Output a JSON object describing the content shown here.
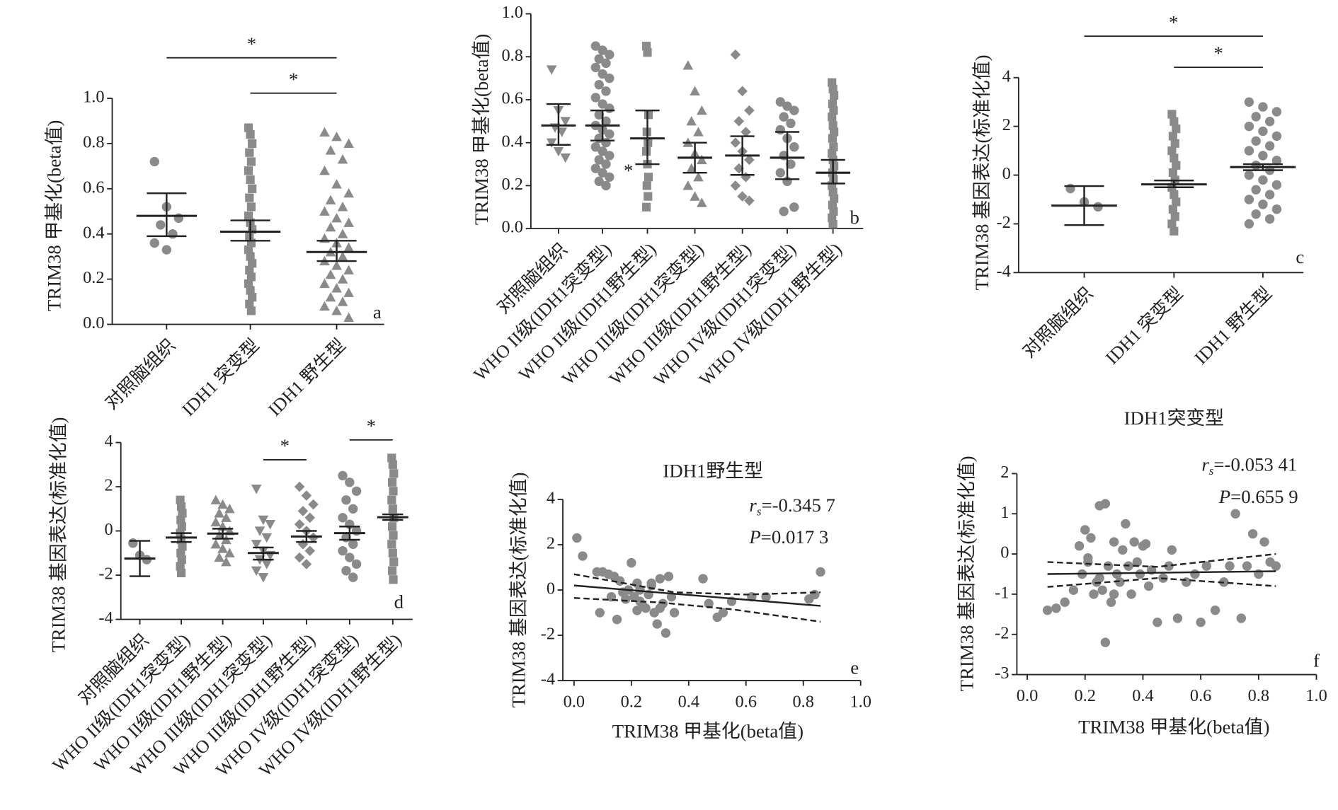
{
  "chart_data": [
    {
      "type": "strip",
      "label": "a",
      "ylabel": "TRIM38 甲基化(beta值)",
      "color": "#8a8a8a",
      "categories": [
        "对照脑组织",
        "IDH1 突变型",
        "IDH1 野生型"
      ],
      "markers": [
        "circle",
        "square",
        "triangle"
      ],
      "ylim": [
        0,
        1
      ],
      "yticks": [
        {
          "value": 0,
          "label": "0.0"
        },
        0.2,
        0.4,
        0.6,
        0.8,
        {
          "value": 1,
          "label": "1.0"
        }
      ],
      "points": [
        [
          0.72,
          0.52,
          0.47,
          0.44,
          0.4,
          0.36,
          0.33
        ],
        [
          0.87,
          0.84,
          0.8,
          0.76,
          0.72,
          0.68,
          0.64,
          0.6,
          0.56,
          0.52,
          0.48,
          0.45,
          0.42,
          0.39,
          0.36,
          0.33,
          0.3,
          0.27,
          0.24,
          0.21,
          0.18,
          0.15,
          0.12,
          0.09,
          0.06
        ],
        [
          0.85,
          0.83,
          0.8,
          0.77,
          0.73,
          0.68,
          0.62,
          0.58,
          0.55,
          0.52,
          0.5,
          0.47,
          0.45,
          0.43,
          0.4,
          0.38,
          0.36,
          0.34,
          0.32,
          0.3,
          0.28,
          0.26,
          0.24,
          0.22,
          0.2,
          0.18,
          0.16,
          0.14,
          0.12,
          0.1,
          0.08,
          0.06,
          0.03
        ]
      ],
      "means": [
        0.48,
        0.41,
        0.32
      ],
      "ci_low": [
        0.39,
        0.37,
        0.28
      ],
      "ci_high": [
        0.58,
        0.46,
        0.37
      ],
      "brackets": [
        {
          "from": 0,
          "to": 2,
          "label": "*"
        },
        {
          "from": 1,
          "to": 2,
          "label": "*"
        }
      ]
    },
    {
      "type": "strip",
      "label": "b",
      "ylabel": "TRIM38 甲基化(beta值)",
      "color": "#8a8a8a",
      "note": "*",
      "categories": [
        "对照脑组织",
        "WHO II级(IDH1突变型)",
        "WHO II级(IDH1野生型)",
        "WHO III级(IDH1突变型)",
        "WHO III级(IDH1野生型)",
        "WHO IV级(IDH1突变型)",
        "WHO IV级(IDH1野生型)"
      ],
      "markers": [
        "triangle-down",
        "circle",
        "square",
        "triangle",
        "diamond",
        "circle",
        "square"
      ],
      "ylim": [
        0,
        1
      ],
      "yticks": [
        {
          "value": 0,
          "label": "0.0"
        },
        0.2,
        0.4,
        0.6,
        0.8,
        {
          "value": 1,
          "label": "1.0"
        }
      ],
      "points": [
        [
          0.74,
          0.55,
          0.5,
          0.47,
          0.45,
          0.4,
          0.36,
          0.33
        ],
        [
          0.85,
          0.83,
          0.81,
          0.79,
          0.77,
          0.75,
          0.72,
          0.7,
          0.67,
          0.64,
          0.61,
          0.58,
          0.56,
          0.53,
          0.5,
          0.48,
          0.46,
          0.44,
          0.42,
          0.4,
          0.38,
          0.36,
          0.34,
          0.32,
          0.3,
          0.28,
          0.26,
          0.24,
          0.22,
          0.2
        ],
        [
          0.85,
          0.82,
          0.53,
          0.45,
          0.4,
          0.36,
          0.3,
          0.24,
          0.2,
          0.15,
          0.1
        ],
        [
          0.76,
          0.64,
          0.55,
          0.5,
          0.45,
          0.4,
          0.35,
          0.32,
          0.28,
          0.24,
          0.2,
          0.15,
          0.12
        ],
        [
          0.81,
          0.64,
          0.55,
          0.5,
          0.45,
          0.4,
          0.36,
          0.32,
          0.28,
          0.24,
          0.2,
          0.15,
          0.13
        ],
        [
          0.59,
          0.57,
          0.55,
          0.52,
          0.49,
          0.46,
          0.42,
          0.38,
          0.34,
          0.3,
          0.26,
          0.22,
          0.1,
          0.08
        ],
        [
          0.68,
          0.65,
          0.62,
          0.58,
          0.55,
          0.52,
          0.48,
          0.45,
          0.42,
          0.38,
          0.35,
          0.32,
          0.29,
          0.26,
          0.23,
          0.2,
          0.17,
          0.14,
          0.11,
          0.08,
          0.05,
          0.02
        ]
      ],
      "means": [
        0.48,
        0.48,
        0.42,
        0.33,
        0.34,
        0.33,
        0.26
      ],
      "ci_low": [
        0.39,
        0.41,
        0.3,
        0.26,
        0.25,
        0.23,
        0.21
      ],
      "ci_high": [
        0.58,
        0.55,
        0.55,
        0.4,
        0.43,
        0.45,
        0.32
      ],
      "brackets": []
    },
    {
      "type": "strip",
      "label": "c",
      "ylabel": "TRIM38 基因表达(标准化值)",
      "color": "#8a8a8a",
      "categories": [
        "对照脑组织",
        "IDH1 突变型",
        "IDH1 野生型"
      ],
      "markers": [
        "circle",
        "square",
        "circle"
      ],
      "ylim": [
        -4,
        4
      ],
      "yticks": [
        -4,
        -2,
        0,
        2,
        4
      ],
      "points": [
        [
          -0.55,
          -1.1,
          -1.3
        ],
        [
          2.5,
          2.2,
          1.9,
          1.6,
          1.3,
          1.0,
          0.7,
          0.4,
          0.1,
          -0.2,
          -0.5,
          -0.8,
          -1.1,
          -1.4,
          -1.7,
          -2.0,
          -2.3
        ],
        [
          3.0,
          2.8,
          2.6,
          2.4,
          2.2,
          2.0,
          1.8,
          1.6,
          1.4,
          1.2,
          1.0,
          0.8,
          0.6,
          0.4,
          0.2,
          0.0,
          -0.2,
          -0.4,
          -0.6,
          -0.8,
          -1.0,
          -1.2,
          -1.4,
          -1.6,
          -1.8,
          -2.0
        ]
      ],
      "means": [
        -1.25,
        -0.38,
        0.33
      ],
      "ci_low": [
        -2.05,
        -0.5,
        0.2
      ],
      "ci_high": [
        -0.45,
        -0.22,
        0.45
      ],
      "brackets": [
        {
          "from": 0,
          "to": 2,
          "label": "*"
        },
        {
          "from": 1,
          "to": 2,
          "label": "*"
        }
      ]
    },
    {
      "type": "strip",
      "label": "d",
      "ylabel": "TRIM38 基因表达(标准化值)",
      "color": "#8a8a8a",
      "categories": [
        "对照脑组织",
        "WHO II级(IDH1突变型)",
        "WHO II级(IDH1野生型)",
        "WHO III级(IDH1突变型)",
        "WHO III级(IDH1野生型)",
        "WHO IV级(IDH1突变型)",
        "WHO IV级(IDH1野生型)"
      ],
      "markers": [
        "circle",
        "square",
        "triangle",
        "triangle-down",
        "diamond",
        "circle",
        "square"
      ],
      "ylim": [
        -4,
        4
      ],
      "yticks": [
        -4,
        -2,
        0,
        2,
        4
      ],
      "points": [
        [
          -0.55,
          -1.1,
          -1.3
        ],
        [
          1.4,
          1.1,
          0.8,
          0.5,
          0.2,
          -0.1,
          -0.4,
          -0.7,
          -1.0,
          -1.3,
          -1.6,
          -1.9
        ],
        [
          1.4,
          1.2,
          1.0,
          0.8,
          0.6,
          0.4,
          0.2,
          0.0,
          -0.2,
          -0.4,
          -0.6,
          -0.8,
          -1.0,
          -1.2,
          -1.4
        ],
        [
          1.9,
          0.5,
          0.3,
          0.0,
          -0.3,
          -0.6,
          -0.9,
          -1.1,
          -1.3,
          -1.5,
          -1.8,
          -2.1
        ],
        [
          2.0,
          1.6,
          1.2,
          0.9,
          0.6,
          0.3,
          0.0,
          -0.3,
          -0.6,
          -0.9,
          -1.2,
          -1.5
        ],
        [
          2.5,
          2.2,
          1.8,
          1.4,
          1.0,
          0.6,
          0.3,
          0.0,
          -0.3,
          -0.6,
          -0.9,
          -1.2,
          -1.5,
          -1.8,
          -2.1
        ],
        [
          3.3,
          3.0,
          2.6,
          2.2,
          1.8,
          1.4,
          1.0,
          0.6,
          0.2,
          -0.2,
          -0.6,
          -1.0,
          -1.4,
          -1.8,
          -2.2
        ]
      ],
      "means": [
        -1.25,
        -0.3,
        -0.12,
        -1.0,
        -0.25,
        -0.1,
        0.62
      ],
      "ci_low": [
        -2.05,
        -0.5,
        -0.35,
        -1.3,
        -0.5,
        -0.4,
        0.5
      ],
      "ci_high": [
        -0.45,
        -0.1,
        0.1,
        -0.75,
        0.0,
        0.2,
        0.75
      ],
      "brackets": [
        {
          "from": 3,
          "to": 4,
          "label": "*"
        },
        {
          "from": 5,
          "to": 6,
          "label": "*"
        }
      ]
    },
    {
      "type": "scatter",
      "label": "e",
      "title": "IDH1野生型",
      "xlabel": "TRIM38 甲基化(beta值)",
      "ylabel": "TRIM38 基因表达(标准化值)",
      "color": "#8a8a8a",
      "stat_r": {
        "symbol": "r",
        "sub": "s",
        "text": "=-0.345 7"
      },
      "stat_p": {
        "symbol": "P",
        "text": "=0.017 3"
      },
      "xlim": [
        0,
        1
      ],
      "xticks": [
        {
          "value": 0,
          "label": "0.0"
        },
        0.2,
        0.4,
        0.6,
        0.8,
        {
          "value": 1,
          "label": "1.0"
        }
      ],
      "ylim": [
        -4,
        4
      ],
      "yticks": [
        -4,
        -2,
        0,
        2,
        4
      ],
      "x": [
        0.01,
        0.03,
        0.08,
        0.09,
        0.1,
        0.12,
        0.13,
        0.14,
        0.15,
        0.16,
        0.18,
        0.19,
        0.2,
        0.21,
        0.22,
        0.22,
        0.23,
        0.24,
        0.25,
        0.26,
        0.27,
        0.28,
        0.29,
        0.3,
        0.31,
        0.32,
        0.33,
        0.34,
        0.35,
        0.23,
        0.3,
        0.45,
        0.47,
        0.5,
        0.52,
        0.55,
        0.62,
        0.67,
        0.82,
        0.84,
        0.86,
        0.27,
        0.17
      ],
      "y": [
        2.3,
        1.5,
        0.8,
        -1.0,
        0.8,
        0.7,
        -0.3,
        0.6,
        -1.3,
        0.4,
        -0.4,
        0.0,
        1.2,
        -0.3,
        0.3,
        -0.9,
        -0.5,
        -0.7,
        -0.8,
        -0.2,
        0.2,
        -1.0,
        -1.5,
        0.5,
        -0.6,
        -1.9,
        0.6,
        -0.3,
        -1.0,
        0.0,
        -0.8,
        0.5,
        -0.6,
        -1.2,
        -1.0,
        -0.5,
        -0.3,
        -0.3,
        -0.4,
        -0.2,
        0.8,
        0.3,
        -0.1
      ],
      "fit": {
        "x": [
          0,
          0.86
        ],
        "y": [
          0.2,
          -0.7
        ]
      },
      "ci_upper": {
        "x": [
          0,
          0.35,
          0.6,
          0.86
        ],
        "y": [
          0.7,
          -0.1,
          -0.2,
          -0.1
        ]
      },
      "ci_lower": {
        "x": [
          0,
          0.3,
          0.55,
          0.86
        ],
        "y": [
          -0.35,
          -0.55,
          -0.85,
          -1.4
        ]
      }
    },
    {
      "type": "scatter",
      "label": "f",
      "title": "IDH1突变型",
      "xlabel": "TRIM38 甲基化(beta值)",
      "ylabel": "TRIM38 基因表达(标准化值)",
      "color": "#8a8a8a",
      "stat_r": {
        "symbol": "r",
        "sub": "s",
        "text": "=-0.053 41"
      },
      "stat_p": {
        "symbol": "P",
        "text": "=0.655 9"
      },
      "xlim": [
        0,
        1
      ],
      "xticks": [
        {
          "value": 0,
          "label": "0.0"
        },
        0.2,
        0.4,
        0.6,
        0.8,
        {
          "value": 1,
          "label": "1.0"
        }
      ],
      "ylim": [
        -3,
        2
      ],
      "yticks": [
        -3,
        -2,
        -1,
        0,
        1,
        2
      ],
      "x": [
        0.07,
        0.1,
        0.13,
        0.16,
        0.18,
        0.19,
        0.2,
        0.21,
        0.22,
        0.23,
        0.24,
        0.25,
        0.26,
        0.27,
        0.28,
        0.29,
        0.3,
        0.31,
        0.32,
        0.33,
        0.34,
        0.35,
        0.36,
        0.37,
        0.38,
        0.39,
        0.4,
        0.41,
        0.42,
        0.43,
        0.45,
        0.47,
        0.49,
        0.5,
        0.52,
        0.55,
        0.58,
        0.6,
        0.62,
        0.65,
        0.68,
        0.7,
        0.72,
        0.74,
        0.76,
        0.78,
        0.8,
        0.82,
        0.84,
        0.86,
        0.27,
        0.3,
        0.21,
        0.25
      ],
      "y": [
        -1.4,
        -1.35,
        -1.2,
        -0.9,
        0.2,
        -0.5,
        0.6,
        -0.2,
        0.4,
        -1.0,
        -0.7,
        1.2,
        -0.9,
        1.25,
        -0.3,
        -1.2,
        0.3,
        -0.5,
        -0.7,
        0.1,
        0.75,
        -0.3,
        -1.0,
        0.3,
        -0.2,
        -0.5,
        0.2,
        0.25,
        -0.8,
        -0.4,
        -1.7,
        -0.6,
        -0.3,
        0.1,
        -1.6,
        -0.7,
        -0.5,
        -1.7,
        -0.3,
        -1.4,
        -0.7,
        -0.3,
        1.0,
        -1.6,
        -0.3,
        0.5,
        -0.5,
        0.3,
        -0.2,
        -0.3,
        -2.2,
        -1.0,
        -0.1,
        -0.6
      ],
      "fit": {
        "x": [
          0.07,
          0.86
        ],
        "y": [
          -0.5,
          -0.43
        ]
      },
      "ci_upper": {
        "x": [
          0.07,
          0.45,
          0.86
        ],
        "y": [
          -0.2,
          -0.32,
          0.0
        ]
      },
      "ci_lower": {
        "x": [
          0.07,
          0.45,
          0.86
        ],
        "y": [
          -0.82,
          -0.6,
          -0.8
        ]
      }
    }
  ]
}
